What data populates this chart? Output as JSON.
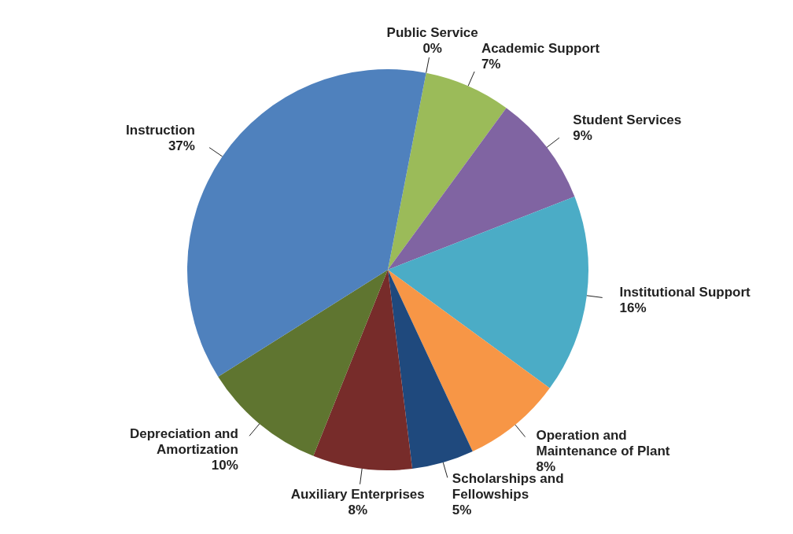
{
  "chart_data": {
    "type": "pie",
    "categories": [
      "Public Service",
      "Academic Support",
      "Student Services",
      "Institutional Support",
      "Operation and Maintenance of Plant",
      "Scholarships and Fellowships",
      "Auxiliary Enterprises",
      "Depreciation and Amortization",
      "Instruction"
    ],
    "values": [
      0,
      7,
      9,
      16,
      8,
      5,
      8,
      10,
      37
    ],
    "colors": [
      "#c0504d",
      "#9bbb59",
      "#8064a2",
      "#4bacc6",
      "#f79646",
      "#1f497d",
      "#772c2a",
      "#5f7530",
      "#4f81bd"
    ],
    "value_labels": [
      "0%",
      "7%",
      "9%",
      "16%",
      "8%",
      "5%",
      "8%",
      "10%",
      "37%"
    ],
    "legend": false
  }
}
